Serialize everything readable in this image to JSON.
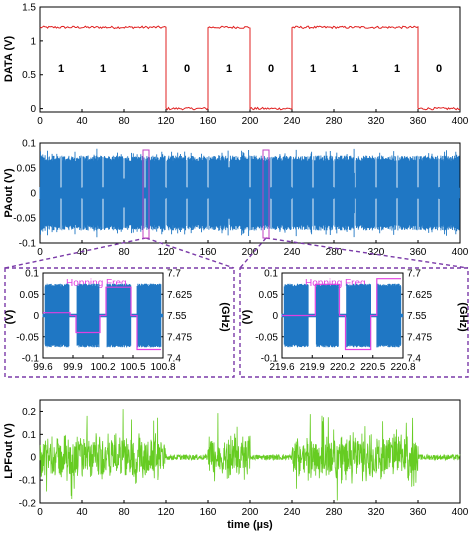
{
  "colors": {
    "data": "#e02020",
    "paout": "#1f77c4",
    "hop": "#e040e0",
    "lpf": "#66cc22",
    "dashed_box": "#7a3aa8"
  },
  "chart_data": [
    {
      "type": "line",
      "ylabel": "DATA (V)",
      "xlim": [
        0,
        400
      ],
      "ylim": [
        -0.05,
        1.5
      ],
      "xticks": [
        "0",
        "40",
        "80",
        "120",
        "160",
        "200",
        "240",
        "280",
        "320",
        "360",
        "400"
      ],
      "yticks": [
        "0",
        "0.5",
        "1",
        "1.5"
      ],
      "bits": [
        "1",
        "1",
        "1",
        "0",
        "1",
        "0",
        "1",
        "1",
        "1",
        "0"
      ],
      "series": [
        {
          "x": [
            0,
            120,
            120,
            160,
            160,
            200,
            200,
            240,
            240,
            360,
            360,
            400
          ],
          "y": [
            1.2,
            1.2,
            0,
            0,
            1.2,
            1.2,
            0,
            0,
            1.2,
            1.2,
            0,
            0
          ]
        }
      ]
    },
    {
      "type": "line",
      "ylabel": "PAout (V)",
      "xlim": [
        0,
        400
      ],
      "ylim": [
        -0.1,
        0.1
      ],
      "xticks": [
        "0",
        "40",
        "80",
        "120",
        "160",
        "200",
        "240",
        "280",
        "320",
        "360",
        "400"
      ],
      "yticks": [
        "-0.1",
        "-0.05",
        "0",
        "0.05",
        "0.1"
      ],
      "envelope": {
        "high": 0.075,
        "low": 0.075,
        "peak": 0.09,
        "notch_every": 20
      }
    },
    {
      "type": "line",
      "ylabel_left": "(V)",
      "ylabel_right": "(GHz)",
      "annotation": "Hopping Freq.",
      "xlim": [
        99.6,
        100.8
      ],
      "ylim": [
        -0.1,
        0.1
      ],
      "ylim_right": [
        7.4,
        7.7
      ],
      "xticks": [
        "99.6",
        "99.9",
        "100.2",
        "100.5",
        "100.8"
      ],
      "yticks": [
        "-0.1",
        "-0.05",
        "0",
        "0.05",
        "0.1"
      ],
      "yticks_right": [
        "7.4",
        "7.475",
        "7.55",
        "7.625",
        "7.7"
      ],
      "hopping": {
        "x": [
          99.6,
          99.87,
          99.87,
          99.93,
          99.93,
          100.17,
          100.17,
          100.23,
          100.23,
          100.48,
          100.48,
          100.54,
          100.54,
          100.78
        ],
        "y": [
          7.56,
          7.56,
          7.55,
          7.55,
          7.49,
          7.49,
          7.55,
          7.55,
          7.65,
          7.65,
          7.55,
          7.55,
          7.43,
          7.43
        ]
      }
    },
    {
      "type": "line",
      "ylabel_left": "(V)",
      "ylabel_right": "(GHz)",
      "annotation": "Hopping Freq.",
      "xlim": [
        219.6,
        220.8
      ],
      "ylim": [
        -0.1,
        0.1
      ],
      "ylim_right": [
        7.4,
        7.7
      ],
      "xticks": [
        "219.6",
        "219.9",
        "220.2",
        "220.5",
        "220.8"
      ],
      "yticks": [
        "-0.1",
        "-0.05",
        "0",
        "0.05",
        "0.1"
      ],
      "yticks_right": [
        "7.4",
        "7.475",
        "7.55",
        "7.625",
        "7.7"
      ],
      "hopping": {
        "x": [
          219.6,
          219.87,
          219.87,
          219.93,
          219.93,
          220.17,
          220.17,
          220.23,
          220.23,
          220.48,
          220.48,
          220.54,
          220.54,
          220.78
        ],
        "y": [
          7.55,
          7.55,
          7.55,
          7.55,
          7.66,
          7.66,
          7.55,
          7.55,
          7.43,
          7.43,
          7.55,
          7.55,
          7.68,
          7.68
        ]
      }
    },
    {
      "type": "line",
      "ylabel": "LPFout (V)",
      "xlabel": "time (µs)",
      "xlim": [
        0,
        400
      ],
      "ylim": [
        -0.2,
        0.25
      ],
      "xticks": [
        "0",
        "40",
        "80",
        "120",
        "160",
        "200",
        "240",
        "280",
        "320",
        "360",
        "400"
      ],
      "yticks": [
        "-0.2",
        "-0.1",
        "0",
        "0.1",
        "0.2"
      ],
      "active_segments": [
        [
          0,
          120
        ],
        [
          160,
          200
        ],
        [
          240,
          360
        ]
      ]
    }
  ]
}
